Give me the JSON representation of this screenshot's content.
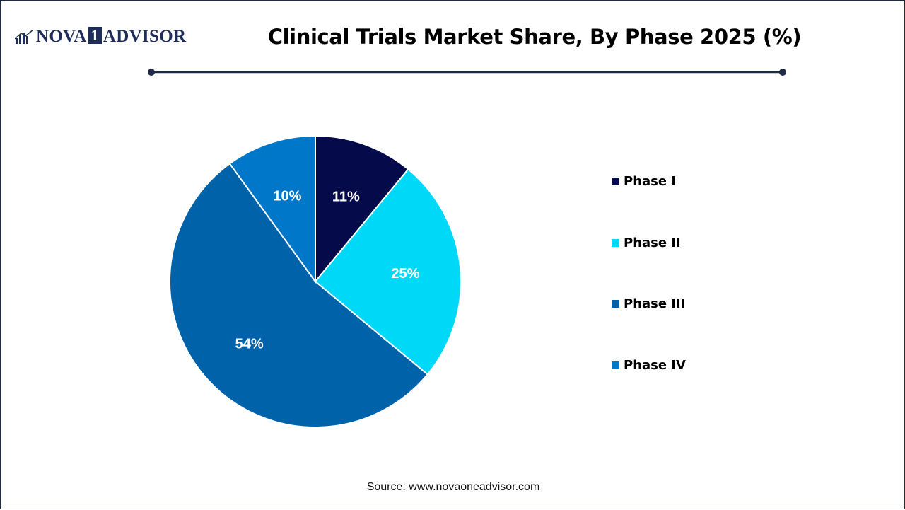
{
  "brand": {
    "name_left": "NOVA",
    "name_box": "1",
    "name_right": "ADVISOR",
    "color": "#1f2d5c"
  },
  "chart_data": {
    "type": "pie",
    "title": "Clinical Trials Market Share, By Phase 2025 (%)",
    "categories": [
      "Phase I",
      "Phase II",
      "Phase III",
      "Phase IV"
    ],
    "values": [
      11,
      25,
      54,
      10
    ],
    "labels": [
      "11%",
      "25%",
      "54%",
      "10%"
    ],
    "colors": [
      "#050a4a",
      "#00d8f7",
      "#0063aa",
      "#0077c8"
    ],
    "start_angle": "12 o'clock",
    "direction": "clockwise",
    "legend_position": "right"
  },
  "source": "Source: www.novaoneadvisor.com"
}
